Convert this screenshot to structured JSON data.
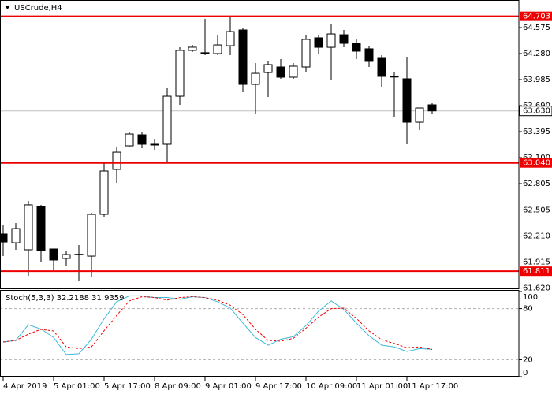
{
  "chart_data": [
    {
      "type": "candlestick",
      "title": "USCrude,H4",
      "categories": [
        "4 Apr 2019",
        null,
        null,
        null,
        "5 Apr 01:00",
        null,
        null,
        null,
        "5 Apr 17:00",
        null,
        null,
        null,
        "8 Apr 09:00",
        null,
        null,
        null,
        "9 Apr 01:00",
        null,
        null,
        null,
        "9 Apr 17:00",
        null,
        null,
        null,
        "10 Apr 09:00",
        null,
        null,
        null,
        "11 Apr 01:00",
        null,
        null,
        null,
        "11 Apr 17:00",
        null,
        null
      ],
      "open": [
        62.233,
        62.134,
        62.054,
        62.546,
        62.063,
        61.956,
        62.0,
        61.982,
        62.456,
        62.966,
        63.234,
        63.359,
        63.252,
        63.252,
        63.797,
        64.316,
        64.29,
        64.28,
        64.369,
        64.548,
        63.931,
        64.065,
        64.128,
        64.012,
        64.128,
        64.459,
        64.351,
        64.494,
        64.396,
        64.334,
        64.235,
        64.021,
        63.994,
        63.502,
        63.699
      ],
      "high": [
        62.34,
        62.358,
        62.608,
        62.564,
        62.063,
        62.045,
        62.108,
        62.474,
        63.037,
        63.216,
        63.386,
        63.386,
        63.314,
        63.887,
        64.351,
        64.378,
        64.673,
        64.486,
        64.709,
        64.566,
        64.173,
        64.2,
        64.217,
        64.173,
        64.486,
        64.486,
        64.62,
        64.548,
        64.441,
        64.369,
        64.262,
        64.065,
        64.244,
        63.663,
        63.717
      ],
      "low": [
        61.982,
        62.054,
        61.759,
        61.911,
        61.822,
        61.866,
        61.697,
        61.741,
        62.429,
        62.814,
        63.216,
        63.207,
        63.189,
        63.037,
        63.699,
        64.298,
        64.262,
        64.262,
        64.262,
        63.842,
        63.592,
        63.788,
        63.994,
        63.994,
        64.065,
        64.28,
        63.976,
        64.351,
        64.217,
        64.128,
        63.905,
        63.565,
        63.252,
        63.413,
        63.592
      ],
      "close": [
        62.143,
        62.295,
        62.564,
        62.045,
        61.938,
        62.0,
        62.003,
        62.456,
        62.948,
        63.162,
        63.368,
        63.252,
        63.243,
        63.797,
        64.316,
        64.352,
        64.28,
        64.378,
        64.53,
        63.931,
        64.056,
        64.155,
        64.012,
        64.137,
        64.441,
        64.351,
        64.503,
        64.396,
        64.307,
        64.191,
        64.021,
        64.015,
        63.502,
        63.663,
        63.63
      ],
      "up_color": "#ffffff",
      "down_color": "#000000",
      "ylim": [
        61.607,
        64.87
      ],
      "yticks": [
        64.575,
        {
          "value": 64.28,
          "label": "64.280"
        },
        63.985,
        {
          "value": 63.69,
          "label": "63.690"
        },
        63.395,
        {
          "value": 63.1,
          "label": "63.100"
        },
        62.805,
        62.505,
        {
          "value": 62.21,
          "label": "62.210"
        },
        61.915,
        {
          "value": 61.62,
          "label": "61.620"
        }
      ],
      "hlines": [
        64.703,
        {
          "value": 63.04,
          "label": "63.040"
        },
        61.811
      ],
      "hline_color": "#ee0000",
      "last_price": {
        "value": 63.63,
        "label": "63.630"
      }
    },
    {
      "type": "line",
      "title": "Stoch(5,3,3) 32.2188 31.9359",
      "series": [
        {
          "color": "#3cb8d8",
          "dash": false,
          "values": [
            40.7,
            42.6,
            61,
            56,
            46,
            26,
            27,
            44,
            68,
            88,
            95,
            95,
            93,
            93,
            91,
            94,
            93,
            88,
            80.5,
            63,
            46,
            37,
            44,
            47,
            60,
            77,
            89,
            79,
            63,
            48,
            37,
            35,
            29.6,
            33,
            32.2188
          ]
        },
        {
          "color": "#ee0000",
          "dash": true,
          "values": [
            40.7,
            42.6,
            50,
            55.6,
            53.7,
            35,
            33,
            35,
            54,
            72,
            89,
            94,
            93,
            90,
            93,
            94,
            93,
            90,
            84,
            73,
            55.6,
            42.6,
            41.7,
            45,
            57,
            70,
            80,
            80.5,
            68.5,
            53.7,
            43.5,
            39,
            34,
            35,
            31.9359
          ]
        }
      ],
      "ylim": [
        0,
        100
      ],
      "yticks": [
        100,
        80,
        20,
        0
      ]
    }
  ]
}
